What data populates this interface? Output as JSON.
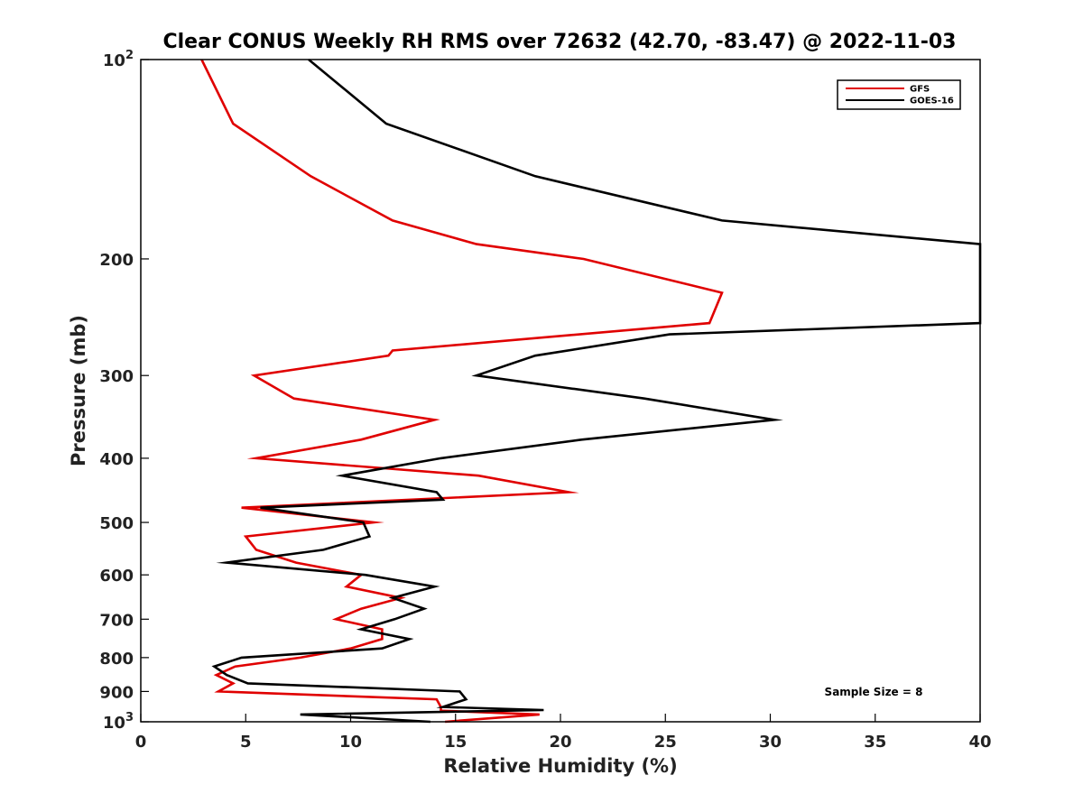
{
  "chart_data": {
    "type": "line",
    "title": "Clear CONUS Weekly RH RMS over 72632 (42.70, -83.47) @ 2022-11-03",
    "xlabel": "Relative Humidity (%)",
    "ylabel": "Pressure (mb)",
    "xlim": [
      0,
      40
    ],
    "ylim": [
      1000,
      100
    ],
    "yscale": "log",
    "y_reversed": true,
    "x_ticks": [
      0,
      5,
      10,
      15,
      20,
      25,
      30,
      35,
      40
    ],
    "x_tick_labels": [
      "0",
      "5",
      "10",
      "15",
      "20",
      "25",
      "30",
      "35",
      "40"
    ],
    "y_ticks": [
      100,
      200,
      300,
      400,
      500,
      600,
      700,
      800,
      900,
      1000
    ],
    "y_tick_labels": [
      "10²",
      "200",
      "300",
      "400",
      "500",
      "600",
      "700",
      "800",
      "900",
      "10³"
    ],
    "grid": false,
    "legend_position": "top-right",
    "annotation": "Sample Size = 8",
    "series": [
      {
        "name": "GFS",
        "color": "#e00000",
        "points": [
          [
            2.9,
            100
          ],
          [
            4.4,
            125
          ],
          [
            8.1,
            150
          ],
          [
            12.0,
            175
          ],
          [
            16.0,
            190
          ],
          [
            21.1,
            200
          ],
          [
            27.7,
            225
          ],
          [
            27.1,
            250
          ],
          [
            12.0,
            275
          ],
          [
            11.8,
            280
          ],
          [
            5.4,
            300
          ],
          [
            7.3,
            325
          ],
          [
            14.0,
            350
          ],
          [
            10.5,
            375
          ],
          [
            5.5,
            400
          ],
          [
            16.1,
            425
          ],
          [
            20.4,
            450
          ],
          [
            4.8,
            475
          ],
          [
            11.1,
            500
          ],
          [
            5.0,
            525
          ],
          [
            5.5,
            550
          ],
          [
            7.4,
            575
          ],
          [
            10.5,
            600
          ],
          [
            9.8,
            625
          ],
          [
            12.4,
            650
          ],
          [
            10.5,
            675
          ],
          [
            9.3,
            700
          ],
          [
            11.5,
            725
          ],
          [
            11.5,
            750
          ],
          [
            10.0,
            775
          ],
          [
            7.6,
            800
          ],
          [
            4.5,
            825
          ],
          [
            3.6,
            850
          ],
          [
            4.4,
            875
          ],
          [
            3.7,
            900
          ],
          [
            14.1,
            925
          ],
          [
            14.3,
            950
          ],
          [
            14.3,
            962
          ],
          [
            19.0,
            975
          ],
          [
            14.5,
            1000
          ]
        ]
      },
      {
        "name": "GOES-16",
        "color": "#000000",
        "points": [
          [
            8.0,
            100
          ],
          [
            11.7,
            125
          ],
          [
            18.8,
            150
          ],
          [
            27.7,
            175
          ],
          [
            40.0,
            190
          ],
          [
            40.0,
            250
          ],
          [
            25.2,
            260
          ],
          [
            18.8,
            280
          ],
          [
            16.0,
            300
          ],
          [
            24.0,
            325
          ],
          [
            30.2,
            350
          ],
          [
            21.0,
            375
          ],
          [
            14.3,
            400
          ],
          [
            9.6,
            425
          ],
          [
            14.1,
            450
          ],
          [
            14.4,
            462
          ],
          [
            5.7,
            475
          ],
          [
            10.6,
            500
          ],
          [
            10.9,
            525
          ],
          [
            8.7,
            550
          ],
          [
            4.1,
            575
          ],
          [
            10.7,
            600
          ],
          [
            14.0,
            625
          ],
          [
            12.0,
            650
          ],
          [
            13.5,
            675
          ],
          [
            12.1,
            700
          ],
          [
            10.5,
            725
          ],
          [
            12.8,
            750
          ],
          [
            11.5,
            775
          ],
          [
            4.8,
            800
          ],
          [
            3.5,
            825
          ],
          [
            4.1,
            850
          ],
          [
            5.1,
            875
          ],
          [
            15.2,
            900
          ],
          [
            15.5,
            925
          ],
          [
            14.4,
            950
          ],
          [
            19.2,
            960
          ],
          [
            7.6,
            975
          ],
          [
            13.8,
            1000
          ]
        ]
      }
    ]
  }
}
